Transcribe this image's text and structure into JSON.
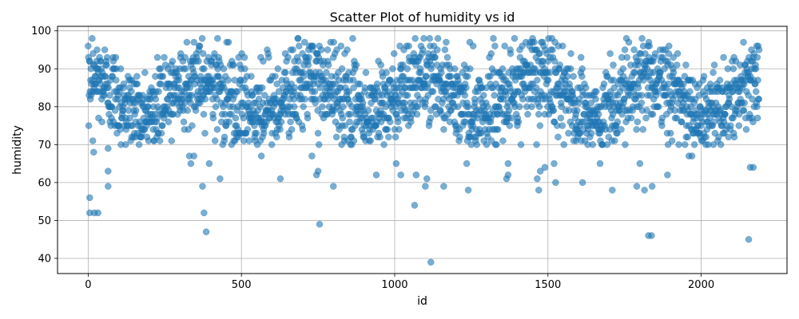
{
  "chart_data": {
    "type": "scatter",
    "title": "Scatter Plot of humidity vs id",
    "xlabel": "id",
    "ylabel": "humidity",
    "xlim": [
      -100,
      2280
    ],
    "ylim": [
      36,
      101.2
    ],
    "xticks": [
      0,
      500,
      1000,
      1500,
      2000
    ],
    "yticks": [
      40,
      50,
      60,
      70,
      80,
      90,
      100
    ],
    "grid": true,
    "marker_color": "#1f77b4",
    "marker_alpha": 0.6,
    "n_points": 2190,
    "points_x_range": [
      0,
      2189
    ],
    "outliers": [
      {
        "x": 5,
        "y": 56
      },
      {
        "x": 5,
        "y": 52
      },
      {
        "x": 20,
        "y": 52
      },
      {
        "x": 32,
        "y": 52
      },
      {
        "x": 18,
        "y": 68
      },
      {
        "x": 65,
        "y": 69
      },
      {
        "x": 65,
        "y": 63
      },
      {
        "x": 65,
        "y": 59
      },
      {
        "x": 330,
        "y": 67
      },
      {
        "x": 335,
        "y": 65
      },
      {
        "x": 345,
        "y": 67
      },
      {
        "x": 373,
        "y": 59
      },
      {
        "x": 378,
        "y": 52
      },
      {
        "x": 385,
        "y": 47
      },
      {
        "x": 395,
        "y": 65
      },
      {
        "x": 430,
        "y": 61
      },
      {
        "x": 565,
        "y": 67
      },
      {
        "x": 627,
        "y": 61
      },
      {
        "x": 730,
        "y": 67
      },
      {
        "x": 745,
        "y": 62
      },
      {
        "x": 750,
        "y": 63
      },
      {
        "x": 755,
        "y": 49
      },
      {
        "x": 800,
        "y": 59
      },
      {
        "x": 940,
        "y": 62
      },
      {
        "x": 1005,
        "y": 65
      },
      {
        "x": 1020,
        "y": 62
      },
      {
        "x": 1065,
        "y": 54
      },
      {
        "x": 1070,
        "y": 62
      },
      {
        "x": 1100,
        "y": 59
      },
      {
        "x": 1105,
        "y": 61
      },
      {
        "x": 1118,
        "y": 39
      },
      {
        "x": 1160,
        "y": 59
      },
      {
        "x": 1235,
        "y": 65
      },
      {
        "x": 1240,
        "y": 58
      },
      {
        "x": 1365,
        "y": 61
      },
      {
        "x": 1370,
        "y": 62
      },
      {
        "x": 1370,
        "y": 65
      },
      {
        "x": 1465,
        "y": 61
      },
      {
        "x": 1470,
        "y": 58
      },
      {
        "x": 1475,
        "y": 63
      },
      {
        "x": 1490,
        "y": 64
      },
      {
        "x": 1520,
        "y": 65
      },
      {
        "x": 1525,
        "y": 60
      },
      {
        "x": 1613,
        "y": 60
      },
      {
        "x": 1670,
        "y": 65
      },
      {
        "x": 1710,
        "y": 58
      },
      {
        "x": 1790,
        "y": 59
      },
      {
        "x": 1800,
        "y": 65
      },
      {
        "x": 1815,
        "y": 58
      },
      {
        "x": 1828,
        "y": 46
      },
      {
        "x": 1838,
        "y": 46
      },
      {
        "x": 1840,
        "y": 59
      },
      {
        "x": 1890,
        "y": 62
      },
      {
        "x": 1960,
        "y": 67
      },
      {
        "x": 1970,
        "y": 67
      },
      {
        "x": 2155,
        "y": 45
      },
      {
        "x": 2160,
        "y": 64
      },
      {
        "x": 2170,
        "y": 64
      }
    ]
  }
}
